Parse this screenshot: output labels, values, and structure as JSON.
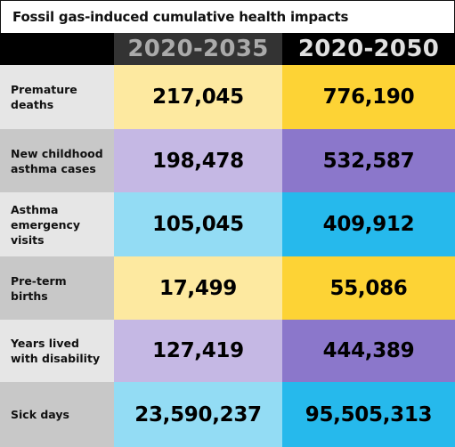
{
  "title": "Fossil gas-induced cumulative health impacts",
  "colors": {
    "label_light": "#e6e6e6",
    "label_dark": "#c8c8c8",
    "yellow_light": "#fde9a0",
    "yellow_dark": "#fdd335",
    "purple_light": "#c5b8e4",
    "purple_dark": "#8b77cb",
    "blue_light": "#93dcf4",
    "blue_dark": "#26b9ec"
  },
  "chart_data": {
    "type": "table",
    "columns": [
      "2020-2035",
      "2020-2050"
    ],
    "rows": [
      {
        "label": "Premature\ndeaths",
        "values": [
          "217,045",
          "776,190"
        ],
        "theme": "yellow"
      },
      {
        "label": "New childhood\nasthma cases",
        "values": [
          "198,478",
          "532,587"
        ],
        "theme": "purple"
      },
      {
        "label": "Asthma\nemergency\nvisits",
        "values": [
          "105,045",
          "409,912"
        ],
        "theme": "blue"
      },
      {
        "label": "Pre-term\nbirths",
        "values": [
          "17,499",
          "55,086"
        ],
        "theme": "yellow"
      },
      {
        "label": "Years lived\nwith disability",
        "values": [
          "127,419",
          "444,389"
        ],
        "theme": "purple"
      },
      {
        "label": "Sick days",
        "values": [
          "23,590,237",
          "95,505,313"
        ],
        "theme": "blue"
      }
    ]
  }
}
